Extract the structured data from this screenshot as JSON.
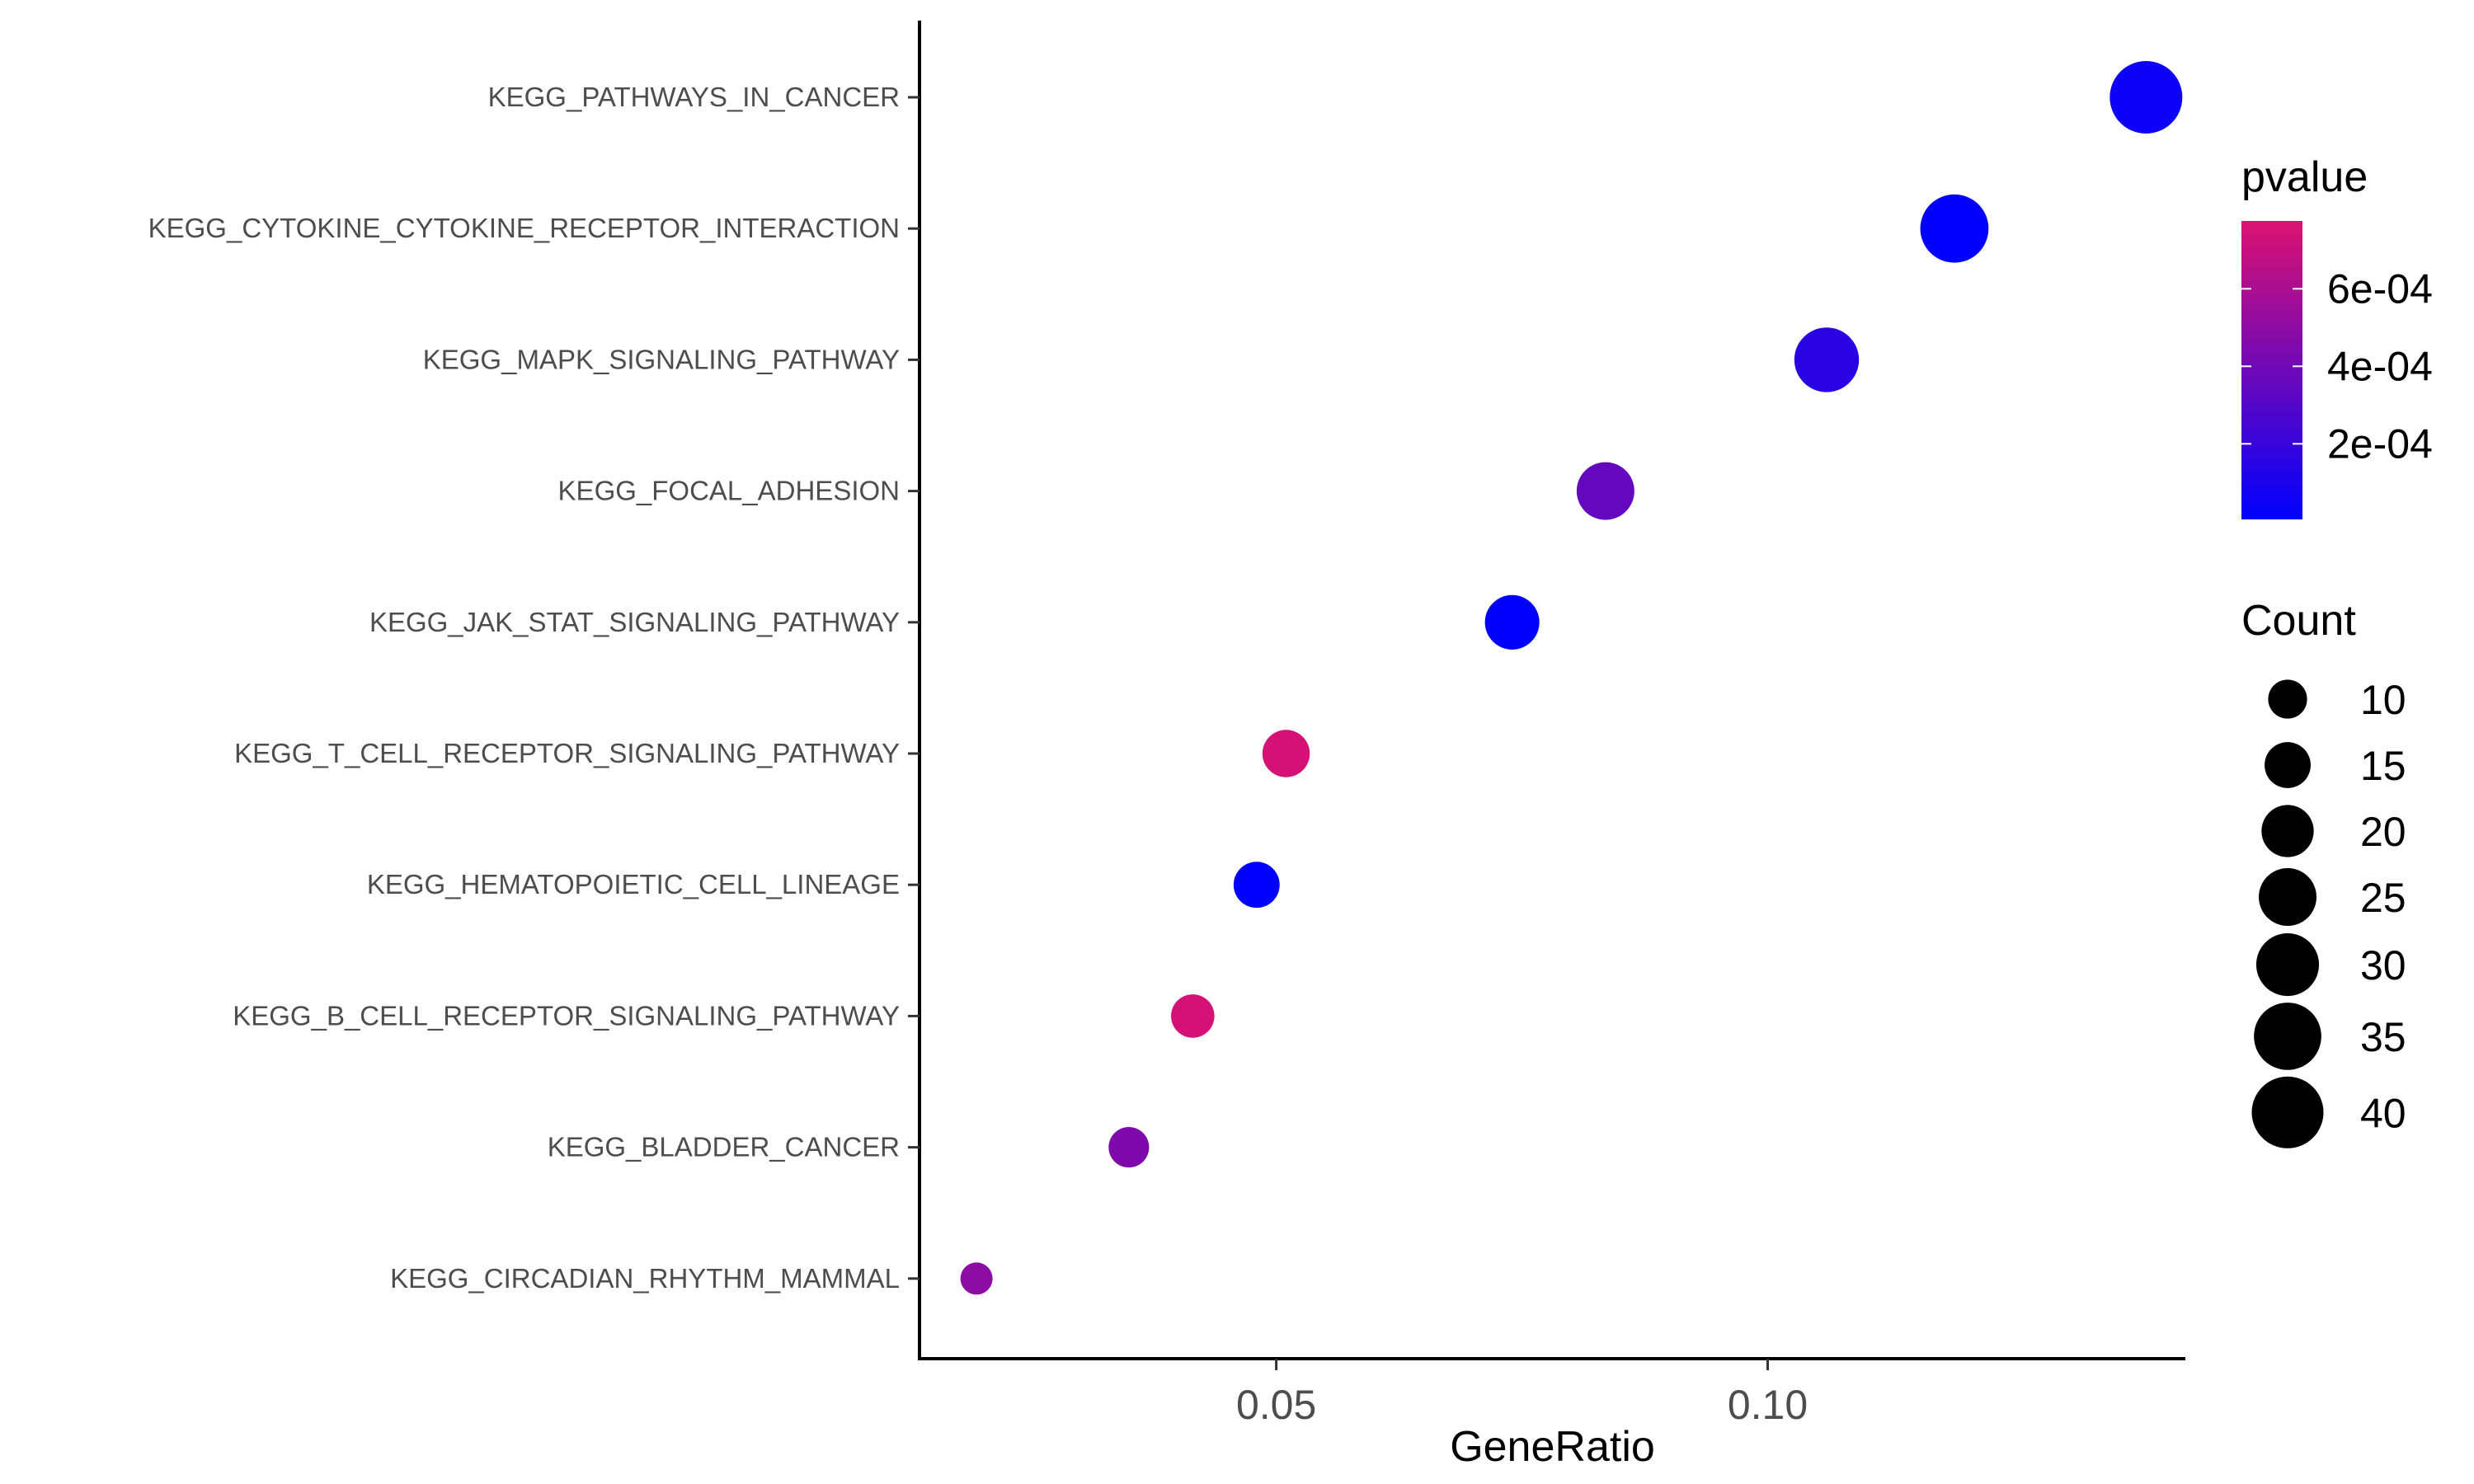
{
  "chart_data": {
    "type": "scatter",
    "title": "",
    "xlabel": "GeneRatio",
    "ylabel": "",
    "xlim": [
      0.0137,
      0.1425
    ],
    "x_ticks": [
      {
        "value": 0.05,
        "label": "0.05"
      },
      {
        "value": 0.1,
        "label": "0.10"
      }
    ],
    "categories": [
      "KEGG_PATHWAYS_IN_CANCER",
      "KEGG_CYTOKINE_CYTOKINE_RECEPTOR_INTERACTION",
      "KEGG_MAPK_SIGNALING_PATHWAY",
      "KEGG_FOCAL_ADHESION",
      "KEGG_JAK_STAT_SIGNALING_PATHWAY",
      "KEGG_T_CELL_RECEPTOR_SIGNALING_PATHWAY",
      "KEGG_HEMATOPOIETIC_CELL_LINEAGE",
      "KEGG_B_CELL_RECEPTOR_SIGNALING_PATHWAY",
      "KEGG_BLADDER_CANCER",
      "KEGG_CIRCADIAN_RHYTHM_MAMMAL"
    ],
    "points": [
      {
        "term": "KEGG_PATHWAYS_IN_CANCER",
        "gene_ratio": 0.1385,
        "count": 41,
        "pvalue": 5e-05
      },
      {
        "term": "KEGG_CYTOKINE_CYTOKINE_RECEPTOR_INTERACTION",
        "gene_ratio": 0.119,
        "count": 36,
        "pvalue": 1e-05
      },
      {
        "term": "KEGG_MAPK_SIGNALING_PATHWAY",
        "gene_ratio": 0.106,
        "count": 32,
        "pvalue": 0.00015
      },
      {
        "term": "KEGG_FOCAL_ADHESION",
        "gene_ratio": 0.0835,
        "count": 25,
        "pvalue": 0.00035
      },
      {
        "term": "KEGG_JAK_STAT_SIGNALING_PATHWAY",
        "gene_ratio": 0.074,
        "count": 22,
        "pvalue": 1e-05
      },
      {
        "term": "KEGG_T_CELL_RECEPTOR_SIGNALING_PATHWAY",
        "gene_ratio": 0.051,
        "count": 16,
        "pvalue": 0.00075
      },
      {
        "term": "KEGG_HEMATOPOIETIC_CELL_LINEAGE",
        "gene_ratio": 0.048,
        "count": 15,
        "pvalue": 1e-05
      },
      {
        "term": "KEGG_B_CELL_RECEPTOR_SIGNALING_PATHWAY",
        "gene_ratio": 0.0415,
        "count": 13,
        "pvalue": 0.00075
      },
      {
        "term": "KEGG_BLADDER_CANCER",
        "gene_ratio": 0.035,
        "count": 11,
        "pvalue": 0.00045
      },
      {
        "term": "KEGG_CIRCADIAN_RHYTHM_MAMMAL",
        "gene_ratio": 0.0195,
        "count": 6,
        "pvalue": 0.0005
      }
    ],
    "color_scale": {
      "title": "pvalue",
      "low_color": "#0000ff",
      "high_color": "#dc1270",
      "range": [
        5e-06,
        0.000775
      ],
      "breaks": [
        {
          "value": 0.0002,
          "label": "2e-04"
        },
        {
          "value": 0.0004,
          "label": "4e-04"
        },
        {
          "value": 0.0006,
          "label": "6e-04"
        }
      ]
    },
    "size_scale": {
      "title": "Count",
      "breaks": [
        10,
        15,
        20,
        25,
        30,
        35,
        40
      ],
      "labels": [
        "10",
        "15",
        "20",
        "25",
        "30",
        "35",
        "40"
      ]
    },
    "grid": false,
    "legend_position": "right"
  }
}
